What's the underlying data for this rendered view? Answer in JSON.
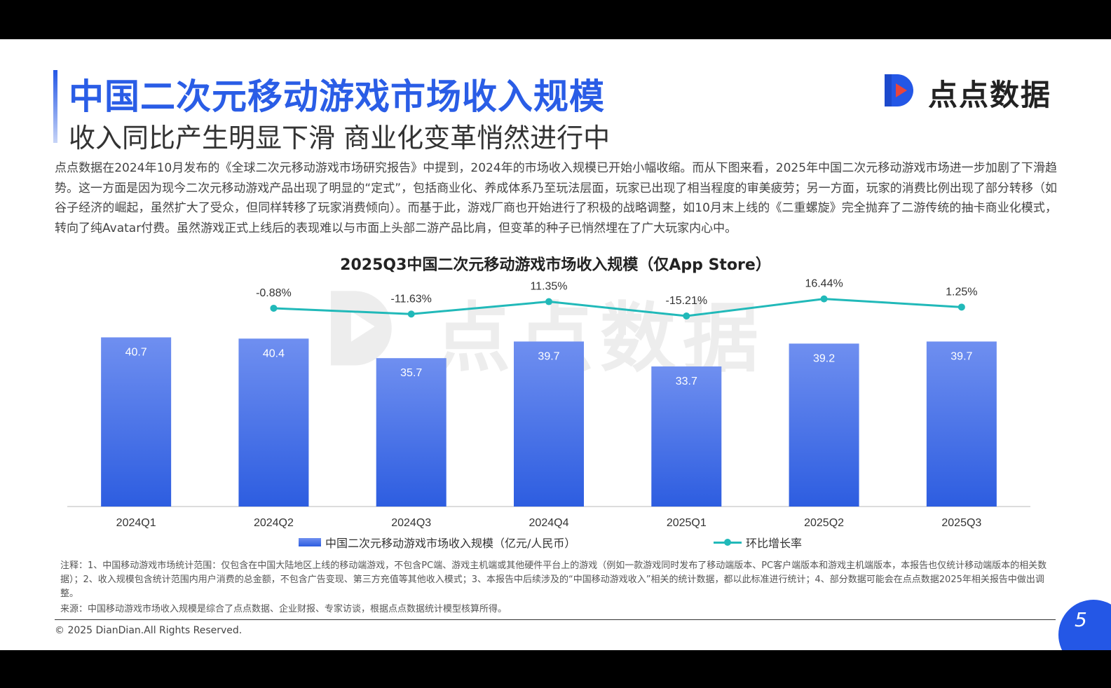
{
  "header": {
    "title": "中国二次元移动游戏市场收入规模",
    "subtitle": "收入同比产生明显下滑 商业化变革悄然进行中",
    "logo_text": "点点数据"
  },
  "intro": "点点数据在2024年10月发布的《全球二次元移动游戏市场研究报告》中提到，2024年的市场收入规模已开始小幅收缩。而从下图来看，2025年中国二次元移动游戏市场进一步加剧了下滑趋势。这一方面是因为现今二次元移动游戏产品出现了明显的“定式”，包括商业化、养成体系乃至玩法层面，玩家已出现了相当程度的审美疲劳；另一方面，玩家的消费比例出现了部分转移（如谷子经济的崛起，虽然扩大了受众，但同样转移了玩家消费倾向）。而基于此，游戏厂商也开始进行了积极的战略调整，如10月末上线的《二重螺旋》完全抛弃了二游传统的抽卡商业化模式，转向了纯Avatar付费。虽然游戏正式上线后的表现难以与市面上头部二游产品比肩，但变革的种子已悄然埋在了广大玩家内心中。",
  "chart_data": {
    "type": "bar",
    "title": "2025Q3中国二次元移动游戏市场收入规模（仅App Store）",
    "categories": [
      "2024Q1",
      "2024Q2",
      "2024Q3",
      "2024Q4",
      "2025Q1",
      "2025Q2",
      "2025Q3"
    ],
    "series": [
      {
        "name": "中国二次元移动游戏市场收入规模（亿元/人民币）",
        "type": "bar",
        "values": [
          40.7,
          40.4,
          35.7,
          39.7,
          33.7,
          39.2,
          39.7
        ],
        "labels": [
          "40.7",
          "40.4",
          "35.7",
          "39.7",
          "33.7",
          "39.2",
          "39.7"
        ],
        "color": "#3d6de6"
      },
      {
        "name": "环比增长率",
        "type": "line",
        "values": [
          null,
          -0.88,
          -11.63,
          11.35,
          -15.21,
          16.44,
          1.25
        ],
        "labels": [
          "",
          "-0.88%",
          "-11.63%",
          "11.35%",
          "-15.21%",
          "16.44%",
          "1.25%"
        ],
        "color": "#21b9b9"
      }
    ],
    "ylim": [
      0,
      45
    ],
    "secondary_ylim": [
      -45,
      25
    ],
    "grid": false,
    "legend_position": "bottom"
  },
  "footer": {
    "note": "注释：1、中国移动游戏市场统计范围：仅包含在中国大陆地区上线的移动端游戏，不包含PC端、游戏主机端或其他硬件平台上的游戏（例如一款游戏同时发布了移动端版本、PC客户端版本和游戏主机端版本，本报告也仅统计移动端版本的相关数据）；2、收入规模包含统计范围内用户消费的总金额，不包含广告变现、第三方充值等其他收入模式；3、本报告中后续涉及的“中国移动游戏收入”相关的统计数据，都以此标准进行统计；4、部分数据可能会在点点数据2025年相关报告中做出调整。",
    "source": "来源：中国移动游戏市场收入规模是综合了点点数据、企业财报、专家访谈，根据点点数据统计模型核算所得。",
    "copyright": "© 2025 DianDian.All Rights Reserved.",
    "page_number": "5"
  },
  "colors": {
    "brand_blue": "#2457e6",
    "bar_top": "#6f8ff0",
    "bar_bottom": "#2d5de0",
    "line": "#21b9b9"
  }
}
